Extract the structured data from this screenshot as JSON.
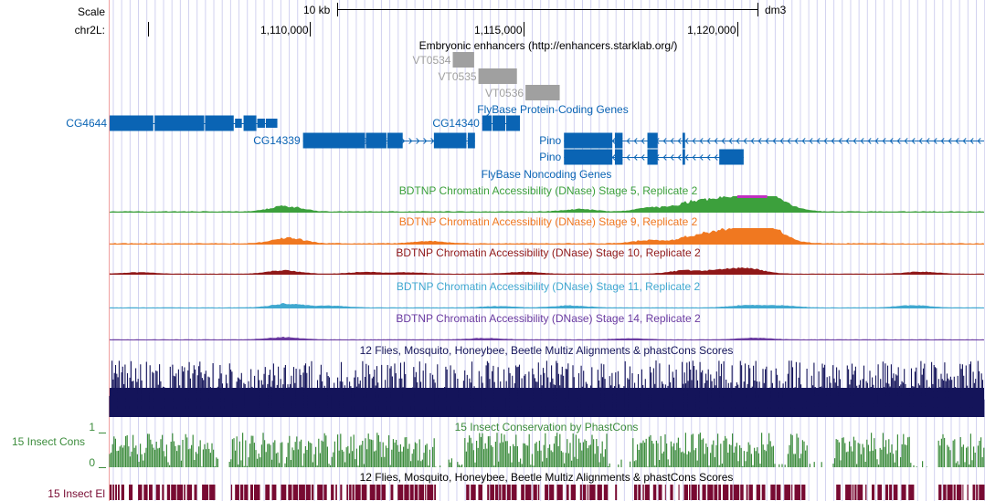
{
  "ruler": {
    "scale_label": "Scale",
    "chrom_label": "chr2L:",
    "scale_bar_label": "10 kb",
    "assembly": "dm3",
    "ticks": [
      {
        "pos": 1110000,
        "label": "1,110,000"
      },
      {
        "pos": 1115000,
        "label": "1,115,000"
      },
      {
        "pos": 1120000,
        "label": "1,120,000"
      }
    ],
    "view_start": 1105330,
    "view_end": 1125770
  },
  "colors": {
    "gene_blue": "#0a64b4",
    "enhancer_gray": "#a0a0a0",
    "stage5": "#3ca03c",
    "stage5_peak": "#c030c0",
    "stage9": "#f07820",
    "stage10": "#901818",
    "stage11": "#40a8d0",
    "stage14": "#6a3aa0",
    "multiz": "#14145a",
    "phastcons": "#3c8c3c",
    "elements": "#780a32",
    "guide": "#d2d2f0",
    "left_border": "#f0a0a0"
  },
  "tracks": {
    "enhancers": {
      "title": "Embryonic enhancers (http://enhancers.starklab.org/)",
      "items": [
        {
          "name": "VT0534",
          "start": 1113350,
          "end": 1113850
        },
        {
          "name": "VT0535",
          "start": 1113950,
          "end": 1114850
        },
        {
          "name": "VT0536",
          "start": 1115050,
          "end": 1115850
        }
      ]
    },
    "protein_coding": {
      "title": "FlyBase Protein-Coding Genes",
      "genes": [
        {
          "name": "CG4644",
          "row": 0,
          "start": 1105330,
          "end": 1109250,
          "strand": "",
          "blocks": [
            [
              1105330,
              1106350
            ],
            [
              1106380,
              1107540
            ],
            [
              1107560,
              1108230
            ],
            [
              1108260,
              1108420
            ],
            [
              1108460,
              1108760
            ],
            [
              1108780,
              1108960
            ],
            [
              1108980,
              1109250
            ]
          ]
        },
        {
          "name": "CG14340",
          "row": 0,
          "start": 1114040,
          "end": 1114920,
          "strand": "",
          "blocks": [
            [
              1114040,
              1114260
            ],
            [
              1114280,
              1114580
            ],
            [
              1114600,
              1114920
            ]
          ]
        },
        {
          "name": "CG14339",
          "row": 1,
          "start": 1109850,
          "end": 1113870,
          "strand": "+",
          "blocks": [
            [
              1109850,
              1111300
            ],
            [
              1111320,
              1111800
            ],
            [
              1111820,
              1112180
            ],
            [
              1112910,
              1113670
            ],
            [
              1113700,
              1113870
            ]
          ]
        },
        {
          "name": "Pino",
          "row": 1,
          "start": 1115950,
          "end": 1125770,
          "strand": "-",
          "blocks": [
            [
              1115950,
              1117080
            ],
            [
              1117140,
              1117320
            ],
            [
              1117900,
              1118140
            ],
            [
              1118720,
              1118780
            ]
          ]
        },
        {
          "name": "Pino",
          "row": 2,
          "start": 1115950,
          "end": 1120150,
          "strand": "-",
          "blocks": [
            [
              1115950,
              1117080
            ],
            [
              1117140,
              1117320
            ],
            [
              1117900,
              1118140
            ],
            [
              1118720,
              1118780
            ],
            [
              1119580,
              1120150
            ]
          ]
        }
      ]
    },
    "noncoding": {
      "title": "FlyBase Noncoding Genes"
    },
    "dnase": [
      {
        "title": "BDTNP Chromatin Accessibility (DNase) Stage 5, Replicate 2",
        "color_key": "stage5",
        "peaks": [
          [
            1109450,
            0.35
          ],
          [
            1116300,
            0.15
          ],
          [
            1118000,
            0.25
          ],
          [
            1118900,
            0.5
          ],
          [
            1119500,
            0.6
          ],
          [
            1120200,
            1.0
          ],
          [
            1120600,
            0.9
          ],
          [
            1121100,
            0.3
          ]
        ]
      },
      {
        "title": "BDTNP Chromatin Accessibility (DNase) Stage 9, Replicate 2",
        "color_key": "stage9",
        "peaks": [
          [
            1109500,
            0.35
          ],
          [
            1112800,
            0.15
          ],
          [
            1117900,
            0.2
          ],
          [
            1118900,
            0.35
          ],
          [
            1119500,
            0.55
          ],
          [
            1120200,
            1.0
          ],
          [
            1120600,
            0.8
          ],
          [
            1121000,
            0.3
          ]
        ]
      },
      {
        "title": "BDTNP Chromatin Accessibility (DNase) Stage 10, Replicate 2",
        "color_key": "stage10",
        "peaks": [
          [
            1106000,
            0.2
          ],
          [
            1109400,
            0.5
          ],
          [
            1111300,
            0.25
          ],
          [
            1112300,
            0.2
          ],
          [
            1115000,
            0.3
          ],
          [
            1118800,
            0.5
          ],
          [
            1119700,
            0.6
          ],
          [
            1120300,
            0.7
          ],
          [
            1124300,
            0.3
          ]
        ]
      },
      {
        "title": "BDTNP Chromatin Accessibility (DNase) Stage 11, Replicate 2",
        "color_key": "stage11",
        "peaks": [
          [
            1109500,
            0.6
          ],
          [
            1110500,
            0.25
          ],
          [
            1114400,
            0.2
          ],
          [
            1116100,
            0.3
          ],
          [
            1120200,
            0.35
          ],
          [
            1121000,
            0.3
          ],
          [
            1124100,
            0.35
          ]
        ]
      },
      {
        "title": "BDTNP Chromatin Accessibility (DNase) Stage 14, Replicate 2",
        "color_key": "stage14",
        "peaks": [
          [
            1109400,
            0.35
          ],
          [
            1114100,
            0.2
          ],
          [
            1117500,
            0.15
          ],
          [
            1120400,
            0.25
          ]
        ]
      }
    ],
    "multiz": {
      "title": "12 Flies, Mosquito, Honeybee, Beetle Multiz Alignments & phastCons Scores"
    },
    "phastcons": {
      "title": "15 Insect Conservation by PhastCons",
      "side_label": "15 Insect Cons",
      "scale_max": "1",
      "scale_min": "0"
    },
    "elements": {
      "title": "12 Flies, Mosquito, Honeybee, Beetle Multiz Alignments & phastCons Scores",
      "side_label": "15 Insect El"
    }
  }
}
